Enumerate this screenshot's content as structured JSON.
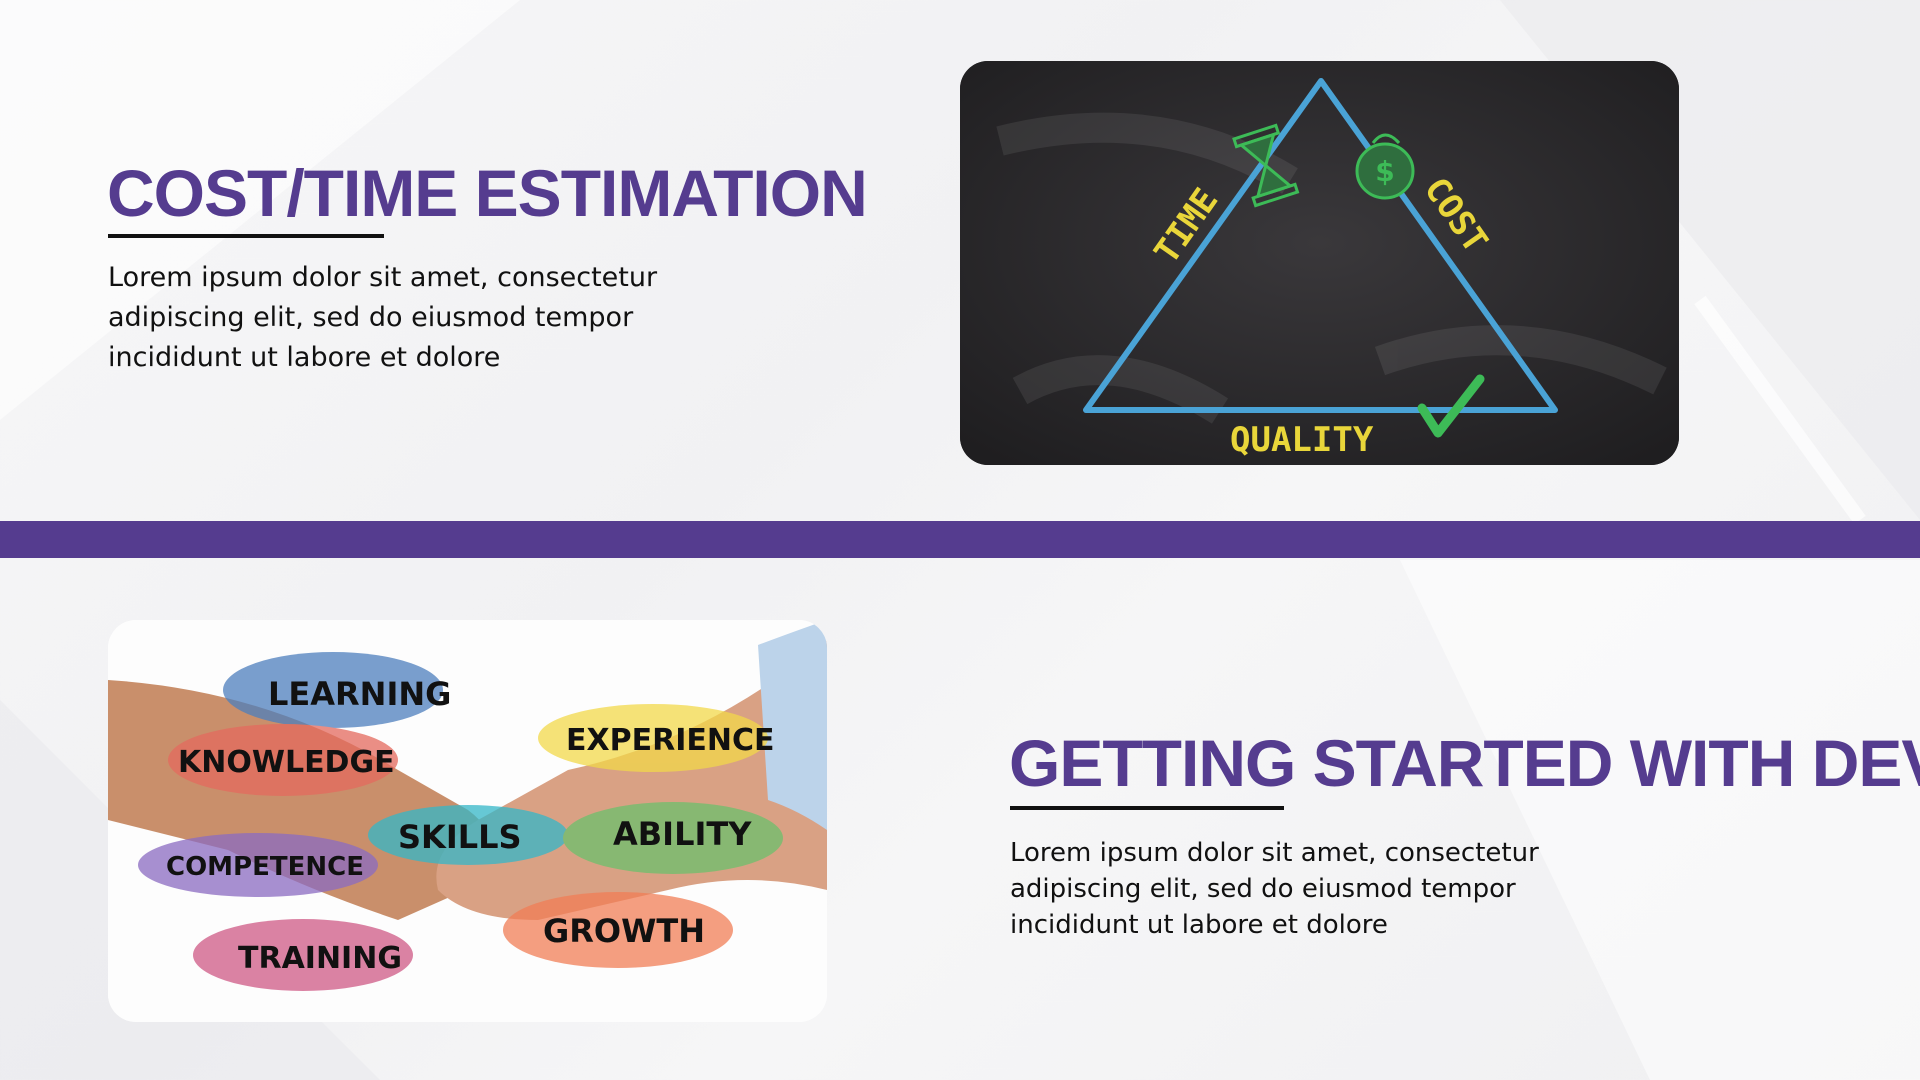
{
  "colors": {
    "accent": "#553c8f",
    "text": "#111111",
    "chalkboard": "#2b292b",
    "chalk_blue": "#4aa3d6",
    "chalk_yellow": "#e9d63a",
    "chalk_green": "#3dbb57"
  },
  "section1": {
    "title": "COST/TIME ESTIMATION",
    "body": "Lorem ipsum dolor sit amet, consectetur adipiscing elit, sed do eiusmod tempor incididunt ut labore et dolore",
    "image": {
      "icon": "chalkboard-triangle-image",
      "labels": {
        "time": "TIME",
        "cost": "COST",
        "quality": "QUALITY"
      }
    }
  },
  "section2": {
    "title": "GETTING STARTED WITH DEV",
    "body": "Lorem ipsum dolor sit amet, consectetur adipiscing elit, sed do eiusmod tempor incididunt ut labore et dolore",
    "image": {
      "icon": "handshake-skills-image",
      "labels": {
        "learning": "LEARNING",
        "knowledge": "KNOWLEDGE",
        "experience": "EXPERIENCE",
        "skills": "SKILLS",
        "ability": "ABILITY",
        "competence": "COMPETENCE",
        "growth": "GROWTH",
        "training": "TRAINING"
      }
    }
  }
}
